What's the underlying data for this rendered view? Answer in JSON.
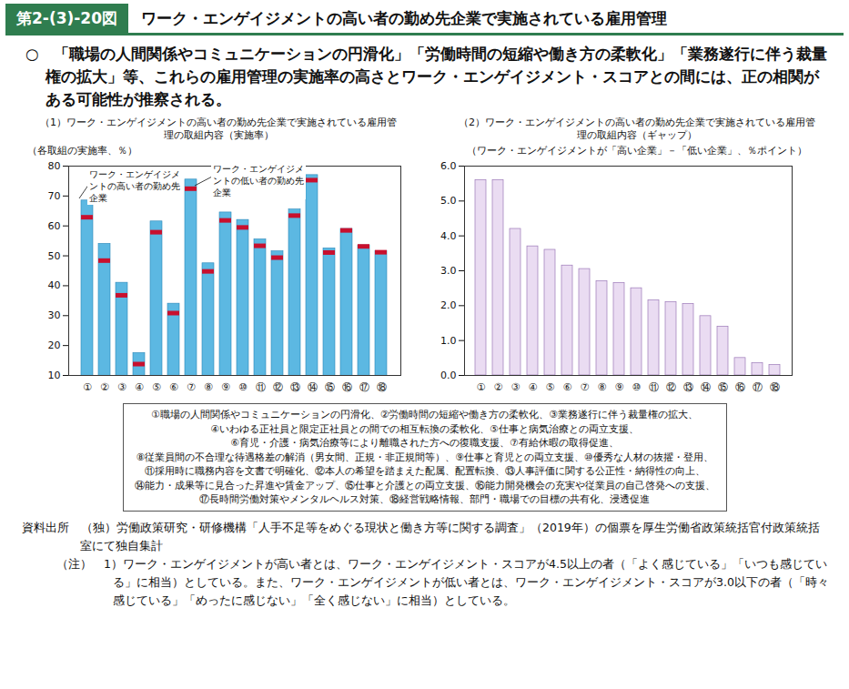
{
  "header": {
    "figure_number": "第2-(3)-20図",
    "title": "ワーク・エンゲイジメントの高い者の勤め先企業で実施されている雇用管理"
  },
  "summary": "○　「職場の人間関係やコミュニケーションの円滑化」「労働時間の短縮や働き方の柔軟化」「業務遂行に伴う裁量権の拡大」等、これらの雇用管理の実施率の高さとワーク・エンゲイジメント・スコアとの間には、正の相関がある可能性が推察される。",
  "chart_data": [
    {
      "type": "bar",
      "title": "（1）ワーク・エンゲイジメントの高い者の勤め先企業で実施されている雇用管理の取組内容（実施率）",
      "y_label": "（各取組の実施率、％）",
      "categories": [
        "①",
        "②",
        "③",
        "④",
        "⑤",
        "⑥",
        "⑦",
        "⑧",
        "⑨",
        "⑩",
        "⑪",
        "⑫",
        "⑬",
        "⑭",
        "⑮",
        "⑯",
        "⑰",
        "⑱"
      ],
      "series": [
        {
          "name": "ワーク・エンゲイジメントの高い者の勤め先企業",
          "type": "bar",
          "color": "#5cb8e2",
          "values": [
            68.5,
            54,
            41,
            17.5,
            61.5,
            34,
            75.5,
            47.5,
            64.5,
            62,
            55.5,
            51.5,
            65.5,
            77,
            52.5,
            59,
            53.5,
            51.5
          ]
        },
        {
          "name": "ワーク・エンゲイジメントの低い者の勤め先企業",
          "type": "tick",
          "color": "#c8102e",
          "values": [
            62.9,
            48.4,
            36.8,
            13.8,
            57.9,
            30.85,
            72.45,
            44.8,
            61.85,
            59.5,
            53.35,
            49.4,
            63.45,
            75.3,
            51.1,
            58.5,
            53.15,
            51.2
          ]
        }
      ],
      "ylim": [
        10,
        80
      ],
      "yticks": [
        10,
        20,
        30,
        40,
        50,
        60,
        70,
        80
      ]
    },
    {
      "type": "bar",
      "title": "（2）ワーク・エンゲイジメントの高い者の勤め先企業で実施されている雇用管理の取組内容（ギャップ）",
      "y_label": "（ワーク・エンゲイジメントが「高い企業」－「低い企業」、％ポイント）",
      "categories": [
        "①",
        "②",
        "③",
        "④",
        "⑤",
        "⑥",
        "⑦",
        "⑧",
        "⑨",
        "⑩",
        "⑪",
        "⑫",
        "⑬",
        "⑭",
        "⑮",
        "⑯",
        "⑰",
        "⑱"
      ],
      "values": [
        5.6,
        5.6,
        4.2,
        3.7,
        3.6,
        3.15,
        3.05,
        2.7,
        2.65,
        2.5,
        2.15,
        2.1,
        2.05,
        1.7,
        1.4,
        0.5,
        0.35,
        0.3
      ],
      "color": "#eadcf2",
      "ylim": [
        0,
        6
      ],
      "yticks": [
        0,
        1,
        2,
        3,
        4,
        5,
        6
      ]
    }
  ],
  "item_legend": [
    "①職場の人間関係やコミュニケーションの円滑化、②労働時間の短縮や働き方の柔軟化、③業務遂行に伴う裁量権の拡大、",
    "④いわゆる正社員と限定正社員との間での相互転換の柔軟化、⑤仕事と病気治療との両立支援、",
    "⑥育児・介護・病気治療等により離職された方への復職支援、⑦有給休暇の取得促進、",
    "⑧従業員間の不合理な待遇格差の解消（男女間、正規・非正規間等）、⑨仕事と育児との両立支援、⑩優秀な人材の抜擢・登用、",
    "⑪採用時に職務内容を文書で明確化、⑫本人の希望を踏まえた配属、配置転換、⑬人事評価に関する公正性・納得性の向上、",
    "⑭能力・成果等に見合った昇進や賃金アップ、⑮仕事と介護との両立支援、⑯能力開発機会の充実や従業員の自己啓発への支援、",
    "⑰長時間労働対策やメンタルヘルス対策、⑱経営戦略情報、部門・職場での目標の共有化、浸透促進"
  ],
  "source": {
    "label": "資料出所",
    "text": "（独）労働政策研究・研修機構「人手不足等をめぐる現状と働き方等に関する調査」（2019年）の個票を厚生労働省政策統括官付政策統括室にて独自集計"
  },
  "note": {
    "label": "（注）",
    "text": "1）ワーク・エンゲイジメントが高い者とは、ワーク・エンゲイジメント・スコアが4.5以上の者（「よく感じている」「いつも感じている」に相当）としている。また、ワーク・エンゲイジメントが低い者とは、ワーク・エンゲイジメント・スコアが3.0以下の者（「時々感じている」「めったに感じない」「全く感じない」に相当）としている。"
  }
}
